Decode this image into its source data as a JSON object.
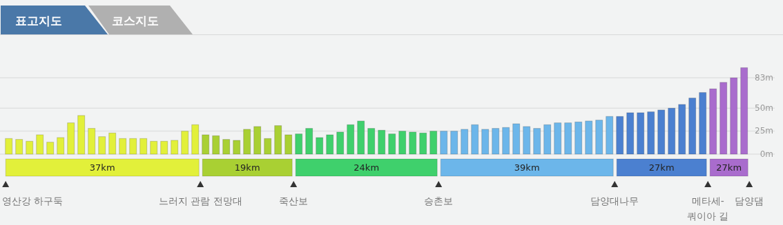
{
  "chart_data": {
    "type": "bar",
    "title": "표고지도",
    "subtitle": "코스지도",
    "categories": [
      null,
      null,
      null,
      null,
      null,
      null,
      null,
      null,
      null,
      null,
      null,
      null,
      null,
      null,
      null,
      null,
      null,
      null,
      null,
      null,
      null,
      null,
      null,
      null,
      null,
      null,
      null,
      null,
      null,
      null,
      null,
      null,
      null,
      null,
      null,
      null,
      null,
      null,
      null,
      null,
      null,
      null,
      null,
      null,
      null,
      null,
      null,
      null,
      null,
      null,
      null,
      null,
      null,
      null,
      null,
      null,
      null,
      null,
      null,
      null,
      null,
      null,
      null,
      null,
      null,
      null,
      null,
      null,
      null,
      null,
      null,
      null
    ],
    "series": [
      {
        "name": "37km",
        "color": "#e2f03a",
        "values": [
          17,
          16,
          14,
          21,
          13,
          18,
          34,
          42,
          28,
          19,
          23,
          17,
          17,
          17,
          14,
          14,
          15,
          25,
          32,
          null,
          null,
          null,
          null,
          null,
          null,
          null,
          null,
          null,
          null,
          null,
          null,
          null,
          null,
          null,
          null,
          null,
          null,
          null,
          null,
          null,
          null,
          null,
          null,
          null,
          null,
          null,
          null,
          null,
          null,
          null,
          null,
          null,
          null,
          null,
          null,
          null,
          null,
          null,
          null,
          null,
          null,
          null,
          null,
          null,
          null,
          null,
          null,
          null,
          null,
          null,
          null,
          null
        ]
      },
      {
        "name": "19km",
        "color": "#a9d033",
        "values": [
          null,
          null,
          null,
          null,
          null,
          null,
          null,
          null,
          null,
          null,
          null,
          null,
          null,
          null,
          null,
          null,
          null,
          null,
          null,
          21,
          20,
          16,
          15,
          27,
          30,
          17,
          31,
          21,
          null,
          null,
          null,
          null,
          null,
          null,
          null,
          null,
          null,
          null,
          null,
          null,
          null,
          null,
          null,
          null,
          null,
          null,
          null,
          null,
          null,
          null,
          null,
          null,
          null,
          null,
          null,
          null,
          null,
          null,
          null,
          null,
          null,
          null,
          null,
          null,
          null,
          null,
          null,
          null,
          null,
          null,
          null,
          null
        ]
      },
      {
        "name": "24km",
        "color": "#3fd06c",
        "values": [
          null,
          null,
          null,
          null,
          null,
          null,
          null,
          null,
          null,
          null,
          null,
          null,
          null,
          null,
          null,
          null,
          null,
          null,
          null,
          null,
          null,
          null,
          null,
          null,
          null,
          null,
          null,
          null,
          22,
          28,
          18,
          21,
          24,
          32,
          36,
          28,
          26,
          22,
          25,
          24,
          23,
          25,
          null,
          null,
          null,
          null,
          null,
          null,
          null,
          null,
          null,
          null,
          null,
          null,
          null,
          null,
          null,
          null,
          null,
          null,
          null,
          null,
          null,
          null,
          null,
          null,
          null,
          null,
          null,
          null,
          null,
          null
        ]
      },
      {
        "name": "39km",
        "color": "#6cb6ea",
        "values": [
          null,
          null,
          null,
          null,
          null,
          null,
          null,
          null,
          null,
          null,
          null,
          null,
          null,
          null,
          null,
          null,
          null,
          null,
          null,
          null,
          null,
          null,
          null,
          null,
          null,
          null,
          null,
          null,
          null,
          null,
          null,
          null,
          null,
          null,
          null,
          null,
          null,
          null,
          null,
          null,
          null,
          null,
          25,
          25,
          27,
          32,
          27,
          28,
          29,
          33,
          30,
          28,
          32,
          34,
          34,
          35,
          36,
          37,
          41,
          null,
          null,
          null,
          null,
          null,
          null,
          null,
          null,
          null,
          null,
          null,
          null,
          null
        ]
      },
      {
        "name": "27km",
        "color": "#4b80d0",
        "values": [
          null,
          null,
          null,
          null,
          null,
          null,
          null,
          null,
          null,
          null,
          null,
          null,
          null,
          null,
          null,
          null,
          null,
          null,
          null,
          null,
          null,
          null,
          null,
          null,
          null,
          null,
          null,
          null,
          null,
          null,
          null,
          null,
          null,
          null,
          null,
          null,
          null,
          null,
          null,
          null,
          null,
          null,
          null,
          null,
          null,
          null,
          null,
          null,
          null,
          null,
          null,
          null,
          null,
          null,
          null,
          null,
          null,
          null,
          null,
          41,
          45,
          45,
          46,
          48,
          50,
          54,
          61,
          67,
          null,
          null,
          null,
          null
        ]
      },
      {
        "name": "27km",
        "color": "#a96ccd",
        "values": [
          null,
          null,
          null,
          null,
          null,
          null,
          null,
          null,
          null,
          null,
          null,
          null,
          null,
          null,
          null,
          null,
          null,
          null,
          null,
          null,
          null,
          null,
          null,
          null,
          null,
          null,
          null,
          null,
          null,
          null,
          null,
          null,
          null,
          null,
          null,
          null,
          null,
          null,
          null,
          null,
          null,
          null,
          null,
          null,
          null,
          null,
          null,
          null,
          null,
          null,
          null,
          null,
          null,
          null,
          null,
          null,
          null,
          null,
          null,
          null,
          null,
          null,
          null,
          null,
          null,
          null,
          null,
          null,
          71,
          78,
          83,
          94
        ]
      }
    ],
    "stacked": true,
    "ylim": [
      0,
      95
    ],
    "yticks": [
      {
        "value": 0,
        "label": "0m"
      },
      {
        "value": 25,
        "label": "25m"
      },
      {
        "value": 50,
        "label": "50m"
      },
      {
        "value": 83,
        "label": "83m"
      }
    ],
    "grid": "y",
    "annotations": [
      "영산강 하구둑",
      "느러지 관람 전망대",
      "죽산보",
      "승촌보",
      "담양대나무",
      "메타세-\n쿼이아 길",
      "담양댐"
    ]
  }
}
